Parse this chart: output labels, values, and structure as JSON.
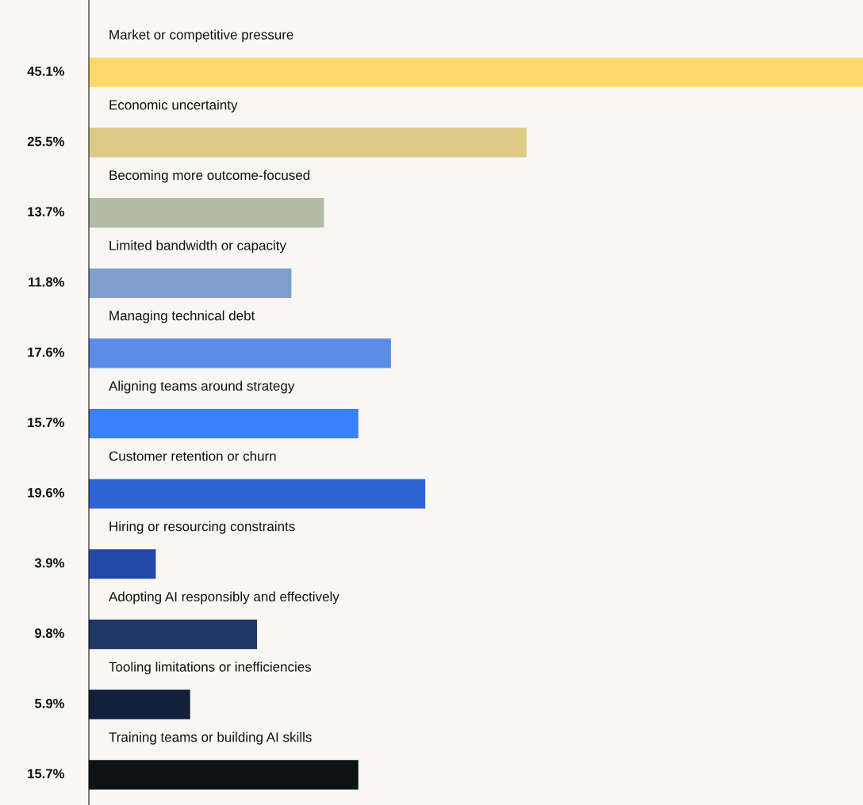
{
  "chart_data": {
    "type": "bar",
    "orientation": "horizontal",
    "value_labels": [
      "45.1%",
      "25.5%",
      "13.7%",
      "11.8%",
      "17.6%",
      "15.7%",
      "19.6%",
      "3.9%",
      "9.8%",
      "5.9%",
      "15.7%"
    ],
    "categories": [
      "Market or competitive pressure",
      "Economic uncertainty",
      "Becoming more outcome-focused",
      "Limited bandwidth or capacity",
      "Managing technical debt",
      "Aligning teams around strategy",
      "Customer retention or churn",
      "Hiring or resourcing constraints",
      "Adopting AI responsibly and effectively",
      "Tooling limitations or inefficiencies",
      "Training teams or building AI skills"
    ],
    "values": [
      45.1,
      25.5,
      13.7,
      11.8,
      17.6,
      15.7,
      19.6,
      3.9,
      9.8,
      5.9,
      15.7
    ],
    "colors": [
      "#ffd86b",
      "#dcc985",
      "#b3baa8",
      "#7f9fcf",
      "#5b8de6",
      "#3a80fa",
      "#2e63d4",
      "#2448a8",
      "#1e3767",
      "#13203a",
      "#0b1413"
    ]
  }
}
